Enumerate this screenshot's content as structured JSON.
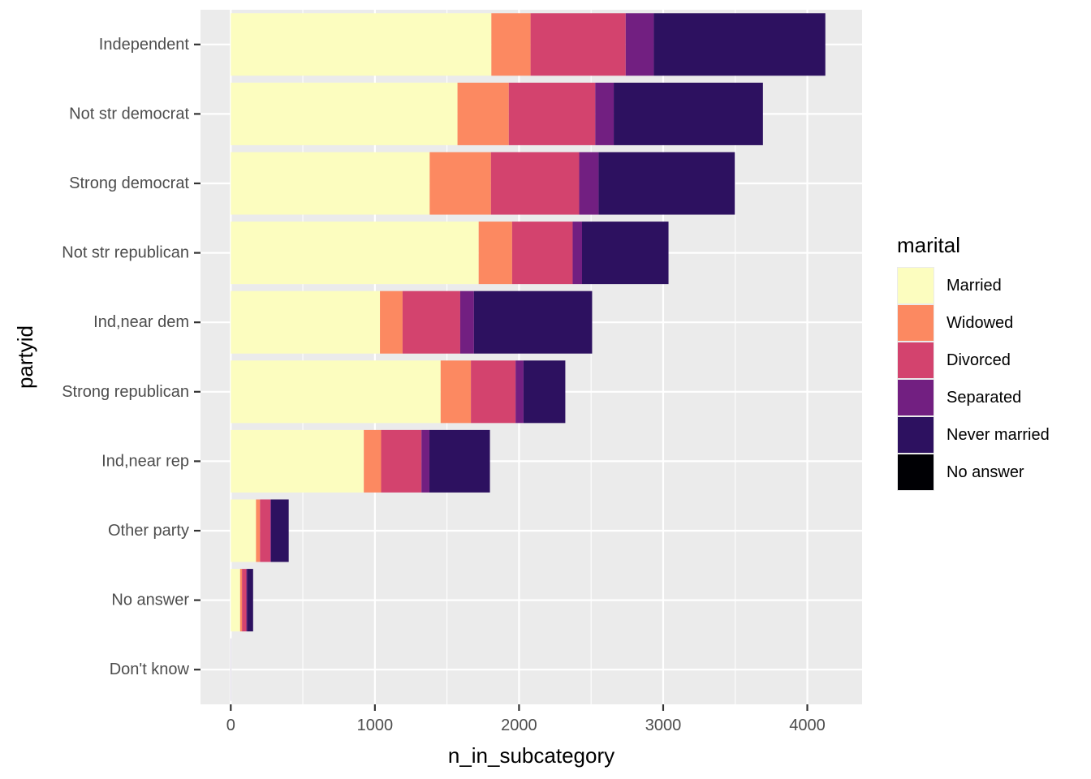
{
  "chart_data": {
    "type": "bar",
    "orientation": "horizontal",
    "stacked": true,
    "xlabel": "n_in_subcategory",
    "ylabel": "partyid",
    "xlim": [
      -210,
      4380
    ],
    "x_ticks": [
      0,
      1000,
      2000,
      3000,
      4000
    ],
    "x_tick_labels": [
      "0",
      "1000",
      "2000",
      "3000",
      "4000"
    ],
    "grid": true,
    "legend_position": "right",
    "legend_title": "marital",
    "categories": [
      "Independent",
      "Not str democrat",
      "Strong democrat",
      "Not str republican",
      "Ind,near dem",
      "Strong republican",
      "Ind,near rep",
      "Other party",
      "No answer",
      "Don't know"
    ],
    "series": [
      {
        "name": "Married",
        "color": "#FCFDBF",
        "values": [
          1808,
          1573,
          1380,
          1720,
          1035,
          1456,
          923,
          175,
          65,
          0
        ]
      },
      {
        "name": "Widowed",
        "color": "#FC8961",
        "values": [
          272,
          356,
          425,
          232,
          157,
          210,
          120,
          28,
          13,
          0
        ]
      },
      {
        "name": "Divorced",
        "color": "#D3436E",
        "values": [
          660,
          600,
          612,
          420,
          400,
          310,
          280,
          72,
          30,
          0
        ]
      },
      {
        "name": "Separated",
        "color": "#721F81",
        "values": [
          195,
          128,
          135,
          65,
          95,
          55,
          55,
          5,
          5,
          0
        ]
      },
      {
        "name": "Never married",
        "color": "#2D1160",
        "values": [
          1190,
          1035,
          945,
          600,
          820,
          290,
          420,
          122,
          42,
          1
        ]
      },
      {
        "name": "No answer",
        "color": "#000004",
        "values": [
          0,
          0,
          0,
          0,
          0,
          0,
          0,
          0,
          0,
          0
        ]
      }
    ]
  },
  "colors": {
    "panel_background": "#EBEBEB",
    "grid_major": "#FFFFFF",
    "tick_text": "#4D4D4D",
    "tick_mark": "#333333"
  }
}
